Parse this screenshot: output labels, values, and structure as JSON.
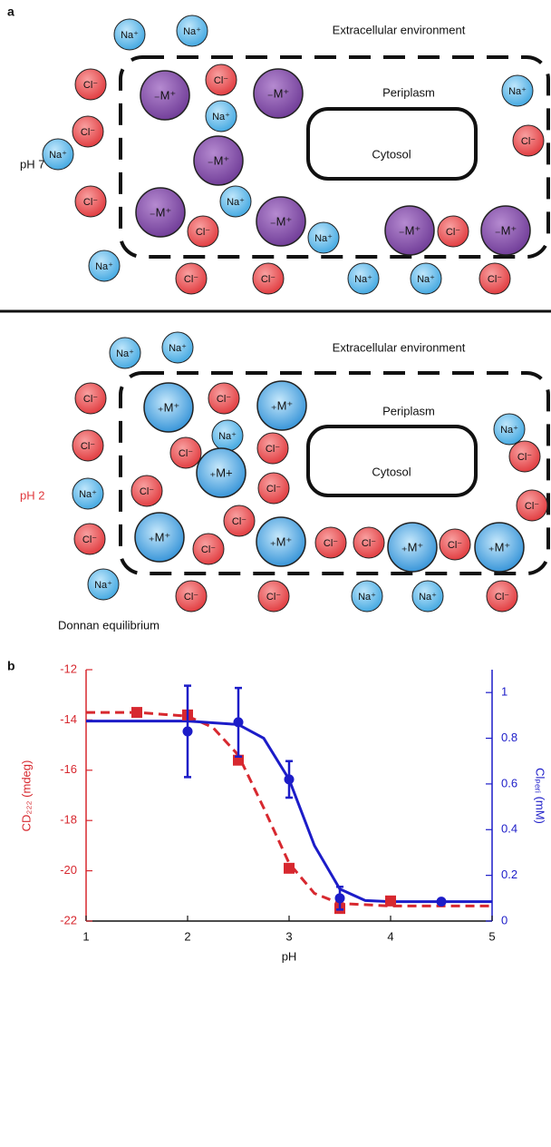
{
  "panel_a": {
    "label": "a",
    "top": {
      "extracellular": "Extracellular environment",
      "periplasm": "Periplasm",
      "cytosol": "Cytosol",
      "condition": "pH 7",
      "ions": [
        "Na⁺",
        "Na⁺",
        "Cl⁻",
        "₋M⁺",
        "Cl⁻",
        "₋M⁺",
        "Na⁺",
        "Na⁺",
        "Cl⁻",
        "₋M⁺",
        "Cl⁻",
        "Na⁺",
        "₋M⁺",
        "Na⁺",
        "Cl⁻",
        "Cl⁻",
        "₋M⁺",
        "Na⁺",
        "₋M⁺",
        "Cl⁻",
        "₋M⁺",
        "Na⁺",
        "Cl⁻",
        "Cl⁻",
        "Na⁺",
        "Na⁺",
        "Cl⁻"
      ]
    },
    "bottom": {
      "extracellular": "Extracellular environment",
      "periplasm": "Periplasm",
      "cytosol": "Cytosol",
      "condition": "pH 2",
      "ions": [
        "Na⁺",
        "Na⁺",
        "Cl⁻",
        "₊M⁺",
        "Cl⁻",
        "₊M⁺",
        "Na⁺",
        "Na⁺",
        "Cl⁻",
        "Cl⁻",
        "Cl⁻",
        "Cl⁻",
        "Na⁺",
        "Cl⁻",
        "₊M+",
        "Cl⁻",
        "Cl⁻",
        "Cl⁻",
        "Cl⁻",
        "₊M⁺",
        "Cl⁻",
        "₊M⁺",
        "Cl⁻",
        "Cl⁻",
        "₊M⁺",
        "Cl⁻",
        "₊M⁺",
        "Na⁺",
        "Cl⁻",
        "Cl⁻",
        "Na⁺",
        "Na⁺",
        "Cl⁻"
      ],
      "caption": "Donnan equilibrium"
    }
  },
  "panel_b_label": "b",
  "chart_data": {
    "type": "scatter",
    "x_label": "pH",
    "y_label": "CD₂₂₂ (mdeg)",
    "y2_label": "Clₚₑᵣᵢ (mM)",
    "xlim": [
      1,
      5
    ],
    "xticks": [
      1,
      2,
      3,
      4,
      5
    ],
    "ylim": [
      -22,
      -12
    ],
    "yticks": [
      -22,
      -20,
      -18,
      -16,
      -14,
      -12
    ],
    "y2lim": [
      0,
      1.1
    ],
    "y2ticks": [
      0,
      0.2,
      0.4,
      0.6,
      0.8,
      1
    ],
    "series": [
      {
        "style": "square",
        "color": "#d7282f",
        "x": [
          1.5,
          2,
          2.5,
          3,
          3.5,
          4
        ],
        "values": [
          -13.7,
          -13.8,
          -15.6,
          -19.9,
          -21.5,
          -21.2
        ]
      },
      {
        "style": "circle",
        "color": "#1c1cc8",
        "axis": "y2",
        "x": [
          2,
          2.5,
          3,
          3.5,
          4.5
        ],
        "values": [
          0.83,
          0.87,
          0.62,
          0.1,
          0.085
        ],
        "errors": [
          0.2,
          0.15,
          0.08,
          0.05,
          0
        ]
      },
      {
        "style": "dashed-line",
        "color": "#d7282f",
        "x": [
          1,
          1.5,
          2,
          2.25,
          2.5,
          2.75,
          3,
          3.25,
          3.5,
          4,
          5
        ],
        "values": [
          -13.7,
          -13.7,
          -13.85,
          -14.3,
          -15.4,
          -17.5,
          -19.7,
          -20.9,
          -21.3,
          -21.4,
          -21.4
        ]
      },
      {
        "style": "line",
        "color": "#1c1cc8",
        "axis": "y2",
        "x": [
          1,
          2,
          2.5,
          2.75,
          3,
          3.25,
          3.5,
          3.75,
          4,
          5
        ],
        "values": [
          0.875,
          0.875,
          0.86,
          0.8,
          0.62,
          0.33,
          0.14,
          0.09,
          0.085,
          0.085
        ]
      }
    ]
  }
}
